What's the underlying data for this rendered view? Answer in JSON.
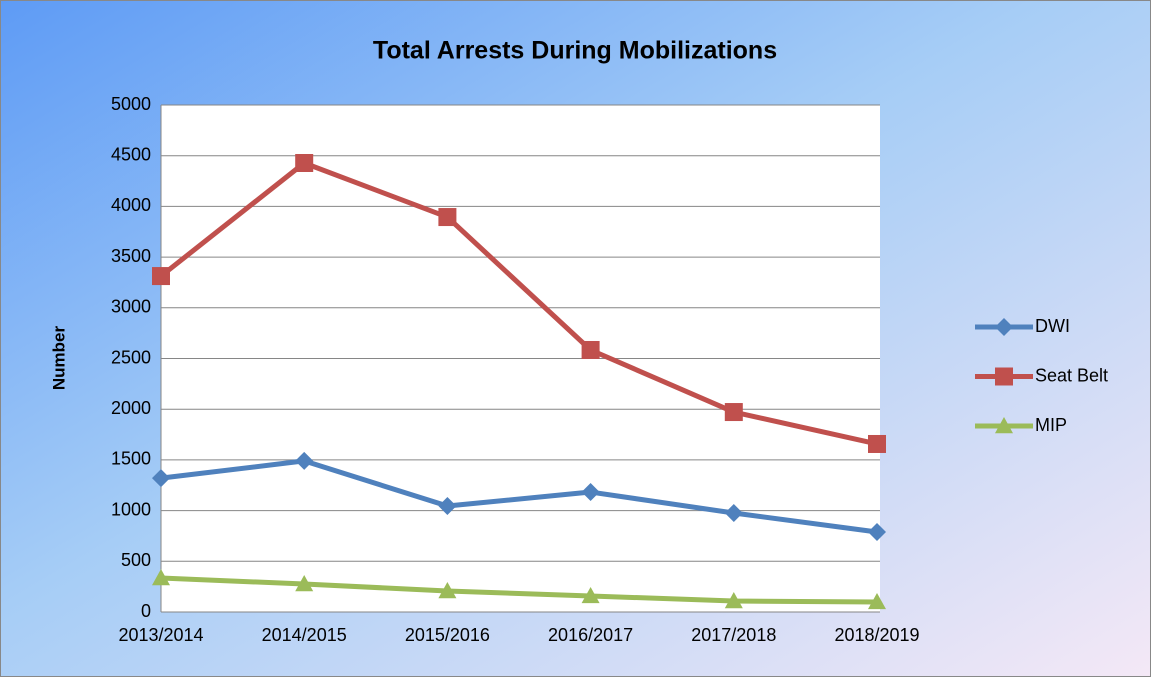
{
  "chart_data": {
    "type": "line",
    "title": "Total Arrests During Mobilizations",
    "y_label": "Number",
    "categories": [
      "2013/2014",
      "2014/2015",
      "2015/2016",
      "2016/2017",
      "2017/2018",
      "2018/2019"
    ],
    "series": [
      {
        "name": "DWI",
        "color": "#4f81bd",
        "marker": "diamond",
        "values": [
          1320,
          1490,
          1045,
          1183,
          976,
          789
        ]
      },
      {
        "name": "Seat Belt",
        "color": "#c0504d",
        "marker": "square",
        "values": [
          3313,
          4428,
          3895,
          2584,
          1972,
          1657
        ]
      },
      {
        "name": "MIP",
        "color": "#9bbb59",
        "marker": "triangle",
        "values": [
          335,
          276,
          207,
          158,
          108,
          99
        ]
      }
    ],
    "ylim": [
      0,
      5000
    ],
    "yticks": [
      0,
      500,
      1000,
      1500,
      2000,
      2500,
      3000,
      3500,
      4000,
      4500,
      5000
    ],
    "grid": true,
    "legend": "right"
  }
}
